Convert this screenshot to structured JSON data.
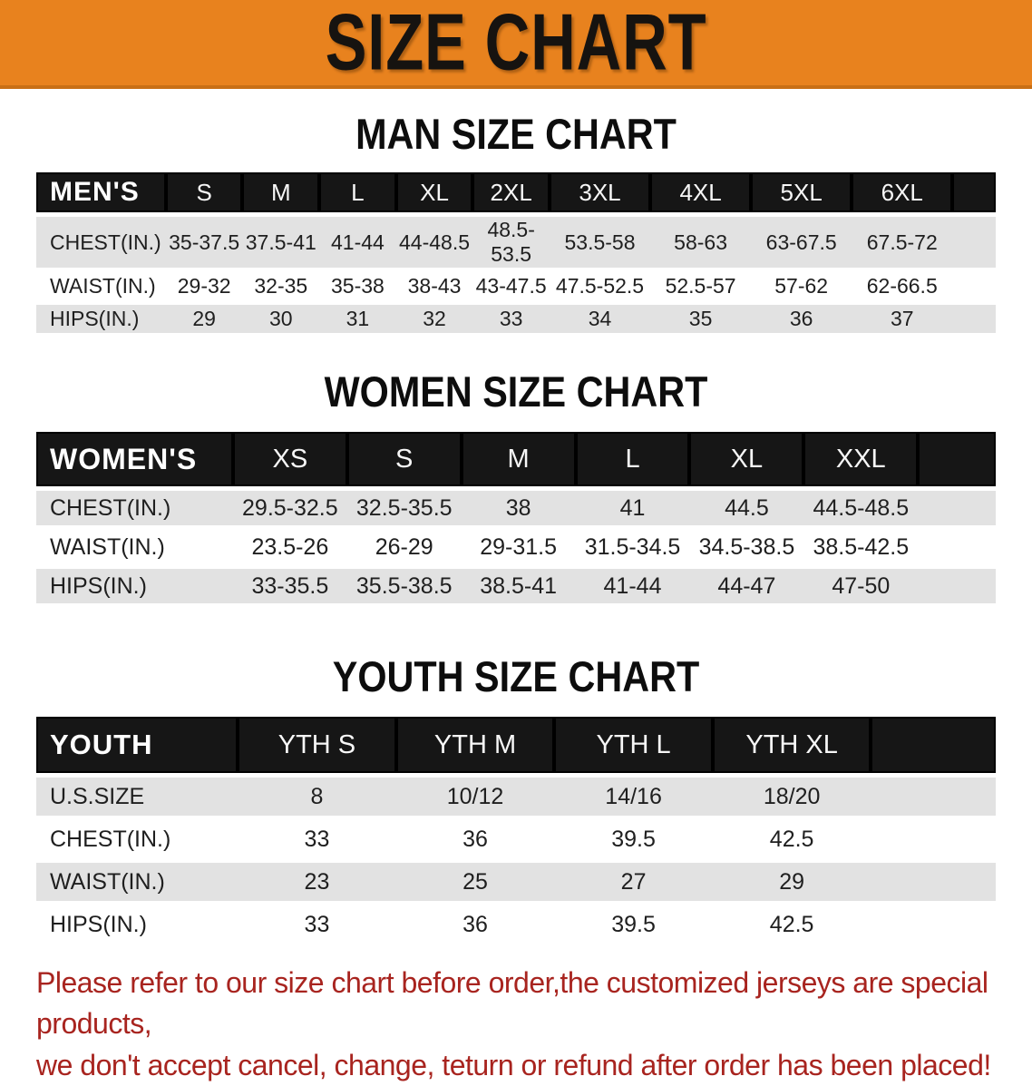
{
  "banner": {
    "title": "SIZE CHART"
  },
  "sections": [
    {
      "heading": "MAN SIZE CHART",
      "table": {
        "header_label": "MEN'S",
        "columns": [
          "S",
          "M",
          "L",
          "XL",
          "2XL",
          "3XL",
          "4XL",
          "5XL",
          "6XL"
        ],
        "rows": [
          {
            "label": "CHEST(IN.)",
            "values": [
              "35-37.5",
              "37.5-41",
              "41-44",
              "44-48.5",
              "48.5-53.5",
              "53.5-58",
              "58-63",
              "63-67.5",
              "67.5-72"
            ]
          },
          {
            "label": "WAIST(IN.)",
            "values": [
              "29-32",
              "32-35",
              "35-38",
              "38-43",
              "43-47.5",
              "47.5-52.5",
              "52.5-57",
              "57-62",
              "62-66.5"
            ]
          },
          {
            "label": "HIPS(IN.)",
            "values": [
              "29",
              "30",
              "31",
              "32",
              "33",
              "34",
              "35",
              "36",
              "37"
            ]
          }
        ]
      }
    },
    {
      "heading": "WOMEN SIZE CHART",
      "table": {
        "header_label": "WOMEN'S",
        "columns": [
          "XS",
          "S",
          "M",
          "L",
          "XL",
          "XXL"
        ],
        "rows": [
          {
            "label": "CHEST(IN.)",
            "values": [
              "29.5-32.5",
              "32.5-35.5",
              "38",
              "41",
              "44.5",
              "44.5-48.5"
            ]
          },
          {
            "label": "WAIST(IN.)",
            "values": [
              "23.5-26",
              "26-29",
              "29-31.5",
              "31.5-34.5",
              "34.5-38.5",
              "38.5-42.5"
            ]
          },
          {
            "label": "HIPS(IN.)",
            "values": [
              "33-35.5",
              "35.5-38.5",
              "38.5-41",
              "41-44",
              "44-47",
              "47-50"
            ]
          }
        ]
      }
    },
    {
      "heading": "YOUTH SIZE CHART",
      "table": {
        "header_label": "YOUTH",
        "columns": [
          "YTH S",
          "YTH M",
          "YTH L",
          "YTH XL"
        ],
        "rows": [
          {
            "label": "U.S.SIZE",
            "values": [
              "8",
              "10/12",
              "14/16",
              "18/20"
            ]
          },
          {
            "label": "CHEST(IN.)",
            "values": [
              "33",
              "36",
              "39.5",
              "42.5"
            ]
          },
          {
            "label": "WAIST(IN.)",
            "values": [
              "23",
              "25",
              "27",
              "29"
            ]
          },
          {
            "label": "HIPS(IN.)",
            "values": [
              "33",
              "36",
              "39.5",
              "42.5"
            ]
          }
        ]
      }
    }
  ],
  "footer": {
    "line1": "Please refer to our size chart before order,the customized jerseys are special products,",
    "line2": "we don't accept cancel, change, teturn or refund after order has been placed!"
  },
  "colors": {
    "banner_orange": "#E8821E",
    "banner_border": "#C86F15",
    "header_band_black": "#161616",
    "stripe_gray": "#E2E2E2",
    "disclaimer_red": "#A8241F"
  }
}
